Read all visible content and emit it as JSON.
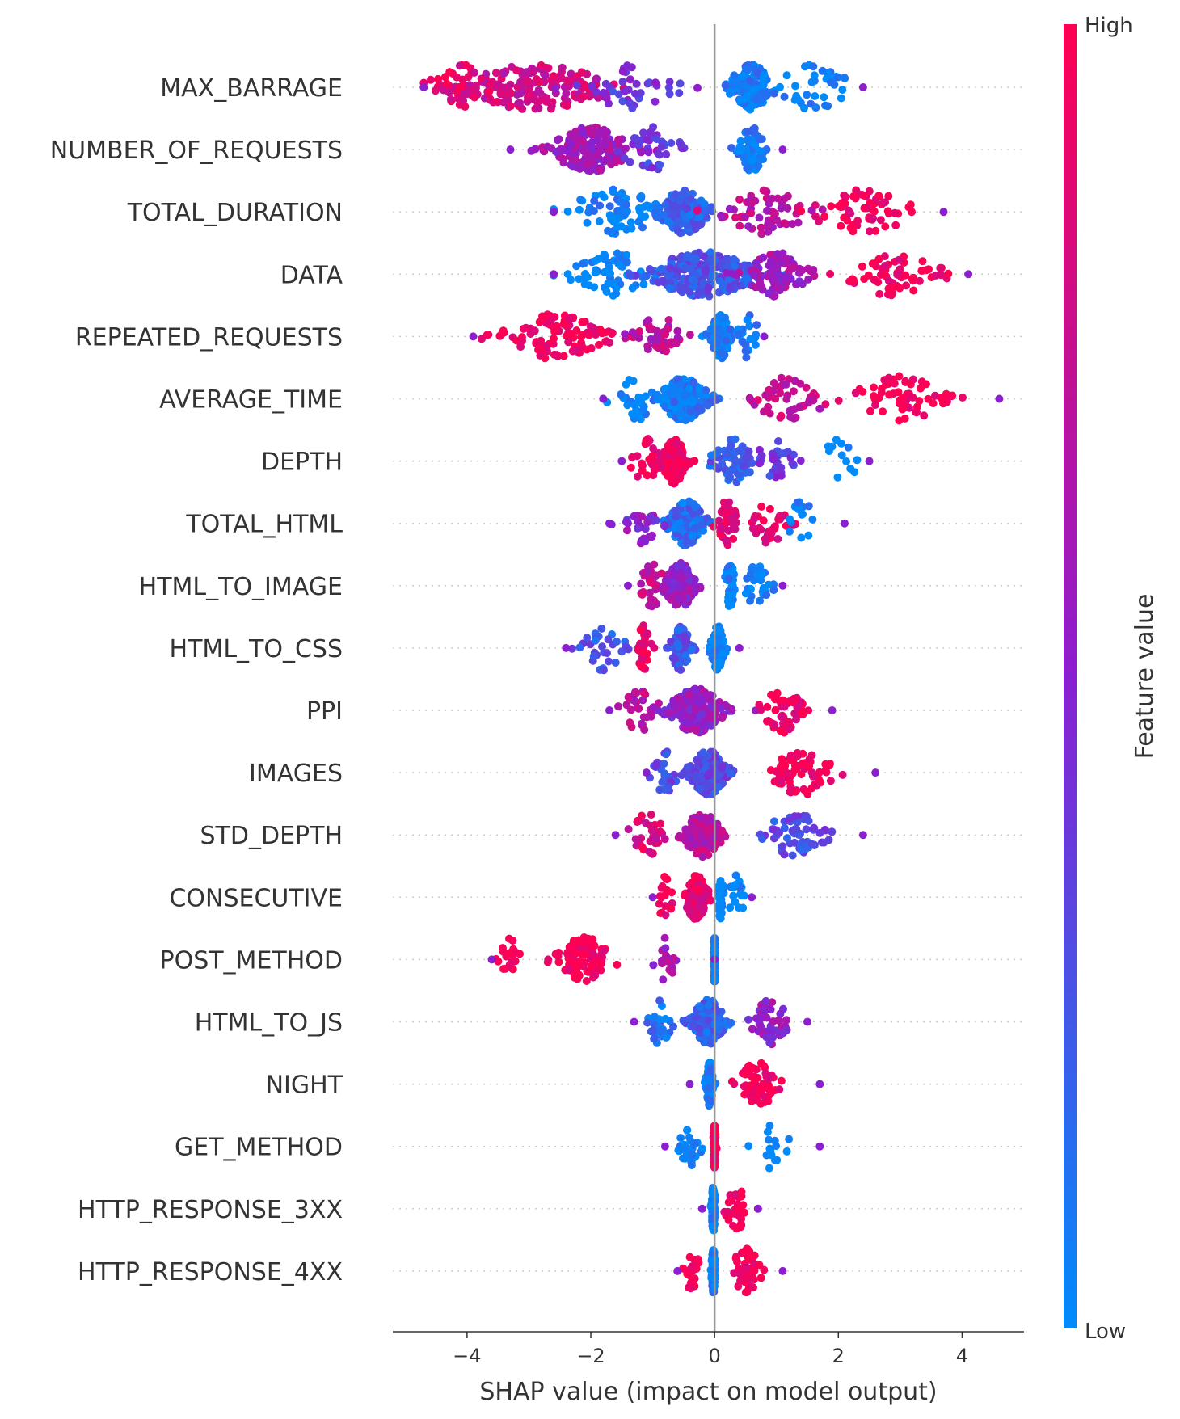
{
  "chart_data": {
    "type": "scatter",
    "subtype": "shap-beeswarm",
    "xlabel": "SHAP value (impact on model output)",
    "xlim": [
      -5.2,
      5.0
    ],
    "xticks": [
      {
        "value": -4,
        "label": "−4"
      },
      {
        "value": -2,
        "label": "−2"
      },
      {
        "value": 0,
        "label": "0"
      },
      {
        "value": 2,
        "label": "2"
      },
      {
        "value": 4,
        "label": "4"
      }
    ],
    "colorbar": {
      "title": "Feature value",
      "high_label": "High",
      "low_label": "Low",
      "high_color": "#ff0052",
      "mid_color": "#8b1fd0",
      "low_color": "#008bfb"
    },
    "grid": false,
    "zero_line": true,
    "features": [
      {
        "name": "MAX_BARRAGE",
        "min": -4.7,
        "max": 2.4,
        "clusters": [
          {
            "center": -2.9,
            "spread": 1.5,
            "count": 170,
            "color": 0.78
          },
          {
            "center": -4.1,
            "spread": 0.6,
            "count": 40,
            "color": 0.9
          },
          {
            "center": -1.4,
            "spread": 0.9,
            "count": 40,
            "color": 0.4
          },
          {
            "center": 0.6,
            "spread": 0.45,
            "count": 130,
            "color": 0.05
          },
          {
            "center": 1.6,
            "spread": 0.7,
            "count": 35,
            "color": 0.02
          }
        ]
      },
      {
        "name": "NUMBER_OF_REQUESTS",
        "min": -3.3,
        "max": 1.1,
        "clusters": [
          {
            "center": -2.0,
            "spread": 0.75,
            "count": 180,
            "color": 0.6
          },
          {
            "center": -1.0,
            "spread": 0.6,
            "count": 40,
            "color": 0.35
          },
          {
            "center": 0.6,
            "spread": 0.25,
            "count": 70,
            "color": 0.05
          }
        ]
      },
      {
        "name": "TOTAL_DURATION",
        "min": -2.6,
        "max": 3.7,
        "clusters": [
          {
            "center": -1.6,
            "spread": 0.9,
            "count": 70,
            "color": 0.03
          },
          {
            "center": -0.5,
            "spread": 0.45,
            "count": 150,
            "color": 0.2
          },
          {
            "center": 0.8,
            "spread": 0.8,
            "count": 60,
            "color": 0.7
          },
          {
            "center": 2.4,
            "spread": 1.0,
            "count": 60,
            "color": 0.97
          }
        ]
      },
      {
        "name": "DATA",
        "min": -2.6,
        "max": 4.1,
        "clusters": [
          {
            "center": -1.6,
            "spread": 0.8,
            "count": 60,
            "color": 0.03
          },
          {
            "center": -0.2,
            "spread": 1.0,
            "count": 230,
            "color": 0.25
          },
          {
            "center": 1.0,
            "spread": 0.6,
            "count": 90,
            "color": 0.6
          },
          {
            "center": 2.9,
            "spread": 0.9,
            "count": 60,
            "color": 0.97
          }
        ]
      },
      {
        "name": "REPEATED_REQUESTS",
        "min": -3.9,
        "max": 0.8,
        "clusters": [
          {
            "center": -2.6,
            "spread": 1.0,
            "count": 110,
            "color": 0.95
          },
          {
            "center": -0.9,
            "spread": 0.5,
            "count": 40,
            "color": 0.7
          },
          {
            "center": 0.1,
            "spread": 0.2,
            "count": 110,
            "color": 0.05
          },
          {
            "center": 0.55,
            "spread": 0.2,
            "count": 20,
            "color": 0.05
          }
        ]
      },
      {
        "name": "AVERAGE_TIME",
        "min": -1.8,
        "max": 4.6,
        "clusters": [
          {
            "center": -0.5,
            "spread": 0.45,
            "count": 200,
            "color": 0.08
          },
          {
            "center": -1.3,
            "spread": 0.4,
            "count": 30,
            "color": 0.03
          },
          {
            "center": 1.2,
            "spread": 0.7,
            "count": 50,
            "color": 0.75
          },
          {
            "center": 3.0,
            "spread": 0.9,
            "count": 60,
            "color": 0.98
          }
        ]
      },
      {
        "name": "DEPTH",
        "min": -1.5,
        "max": 2.5,
        "clusters": [
          {
            "center": -0.65,
            "spread": 0.22,
            "count": 170,
            "color": 0.97
          },
          {
            "center": -1.1,
            "spread": 0.3,
            "count": 30,
            "color": 0.95
          },
          {
            "center": 0.3,
            "spread": 0.4,
            "count": 60,
            "color": 0.2
          },
          {
            "center": 1.0,
            "spread": 0.4,
            "count": 30,
            "color": 0.35
          },
          {
            "center": 2.0,
            "spread": 0.4,
            "count": 12,
            "color": 0.02
          }
        ]
      },
      {
        "name": "TOTAL_HTML",
        "min": -1.7,
        "max": 2.1,
        "clusters": [
          {
            "center": -0.45,
            "spread": 0.35,
            "count": 150,
            "color": 0.15
          },
          {
            "center": -1.2,
            "spread": 0.35,
            "count": 30,
            "color": 0.5
          },
          {
            "center": 0.2,
            "spread": 0.2,
            "count": 40,
            "color": 0.85
          },
          {
            "center": 0.9,
            "spread": 0.35,
            "count": 30,
            "color": 0.9
          },
          {
            "center": 1.4,
            "spread": 0.3,
            "count": 15,
            "color": 0.02
          }
        ]
      },
      {
        "name": "HTML_TO_IMAGE",
        "min": -1.4,
        "max": 1.1,
        "clusters": [
          {
            "center": -0.55,
            "spread": 0.3,
            "count": 150,
            "color": 0.55
          },
          {
            "center": -1.0,
            "spread": 0.25,
            "count": 30,
            "color": 0.75
          },
          {
            "center": 0.25,
            "spread": 0.1,
            "count": 60,
            "color": 0.03
          },
          {
            "center": 0.7,
            "spread": 0.25,
            "count": 30,
            "color": 0.03
          }
        ]
      },
      {
        "name": "HTML_TO_CSS",
        "min": -2.4,
        "max": 0.4,
        "clusters": [
          {
            "center": -0.55,
            "spread": 0.18,
            "count": 100,
            "color": 0.25
          },
          {
            "center": -1.15,
            "spread": 0.12,
            "count": 30,
            "color": 0.95
          },
          {
            "center": -1.8,
            "spread": 0.4,
            "count": 30,
            "color": 0.25
          },
          {
            "center": 0.05,
            "spread": 0.12,
            "count": 110,
            "color": 0.03
          }
        ]
      },
      {
        "name": "PPI",
        "min": -1.7,
        "max": 1.9,
        "clusters": [
          {
            "center": -0.3,
            "spread": 0.5,
            "count": 220,
            "color": 0.55
          },
          {
            "center": -1.2,
            "spread": 0.35,
            "count": 30,
            "color": 0.7
          },
          {
            "center": 1.1,
            "spread": 0.4,
            "count": 50,
            "color": 0.95
          }
        ]
      },
      {
        "name": "IMAGES",
        "min": -1.1,
        "max": 2.6,
        "clusters": [
          {
            "center": -0.1,
            "spread": 0.35,
            "count": 170,
            "color": 0.3
          },
          {
            "center": -0.8,
            "spread": 0.25,
            "count": 30,
            "color": 0.3
          },
          {
            "center": 1.4,
            "spread": 0.6,
            "count": 70,
            "color": 0.98
          }
        ]
      },
      {
        "name": "STD_DEPTH",
        "min": -1.6,
        "max": 2.4,
        "clusters": [
          {
            "center": -0.2,
            "spread": 0.35,
            "count": 180,
            "color": 0.7
          },
          {
            "center": -1.1,
            "spread": 0.35,
            "count": 30,
            "color": 0.85
          },
          {
            "center": 1.3,
            "spread": 0.6,
            "count": 60,
            "color": 0.3
          }
        ]
      },
      {
        "name": "CONSECUTIVE",
        "min": -1.0,
        "max": 0.6,
        "clusters": [
          {
            "center": -0.3,
            "spread": 0.22,
            "count": 140,
            "color": 0.9
          },
          {
            "center": -0.8,
            "spread": 0.15,
            "count": 20,
            "color": 0.95
          },
          {
            "center": 0.1,
            "spread": 0.05,
            "count": 40,
            "color": 0.03
          },
          {
            "center": 0.35,
            "spread": 0.15,
            "count": 15,
            "color": 0.03
          }
        ]
      },
      {
        "name": "POST_METHOD",
        "min": -3.6,
        "max": 0.0,
        "clusters": [
          {
            "center": -2.1,
            "spread": 0.55,
            "count": 90,
            "color": 0.98
          },
          {
            "center": -3.3,
            "spread": 0.2,
            "count": 20,
            "color": 0.98
          },
          {
            "center": -0.8,
            "spread": 0.2,
            "count": 20,
            "color": 0.6
          },
          {
            "center": 0.0,
            "spread": 0.01,
            "count": 80,
            "color": 0.03
          }
        ]
      },
      {
        "name": "HTML_TO_JS",
        "min": -1.3,
        "max": 1.5,
        "clusters": [
          {
            "center": -0.1,
            "spread": 0.3,
            "count": 170,
            "color": 0.2
          },
          {
            "center": -0.9,
            "spread": 0.25,
            "count": 30,
            "color": 0.1
          },
          {
            "center": 0.9,
            "spread": 0.35,
            "count": 40,
            "color": 0.55
          }
        ]
      },
      {
        "name": "NIGHT",
        "min": -0.4,
        "max": 1.7,
        "clusters": [
          {
            "center": -0.08,
            "spread": 0.06,
            "count": 120,
            "color": 0.08
          },
          {
            "center": 0.7,
            "spread": 0.4,
            "count": 60,
            "color": 0.98
          }
        ]
      },
      {
        "name": "GET_METHOD",
        "min": -0.8,
        "max": 1.7,
        "clusters": [
          {
            "center": 0.0,
            "spread": 0.02,
            "count": 120,
            "color": 0.98
          },
          {
            "center": -0.4,
            "spread": 0.2,
            "count": 30,
            "color": 0.03
          },
          {
            "center": 0.9,
            "spread": 0.4,
            "count": 15,
            "color": 0.03
          }
        ]
      },
      {
        "name": "HTTP_RESPONSE_3XX",
        "min": -0.2,
        "max": 0.7,
        "clusters": [
          {
            "center": -0.02,
            "spread": 0.03,
            "count": 120,
            "color": 0.05
          },
          {
            "center": 0.35,
            "spread": 0.2,
            "count": 30,
            "color": 0.98
          }
        ]
      },
      {
        "name": "HTTP_RESPONSE_4XX",
        "min": -0.6,
        "max": 1.1,
        "clusters": [
          {
            "center": -0.02,
            "spread": 0.03,
            "count": 120,
            "color": 0.05
          },
          {
            "center": 0.5,
            "spread": 0.3,
            "count": 40,
            "color": 0.98
          },
          {
            "center": -0.35,
            "spread": 0.15,
            "count": 20,
            "color": 0.98
          }
        ]
      }
    ]
  }
}
